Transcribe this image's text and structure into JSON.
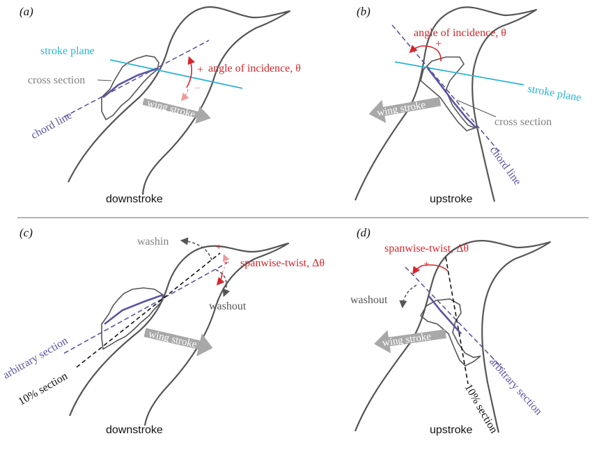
{
  "panels": {
    "a": {
      "letter": "(a)",
      "phase": "downstroke",
      "stroke_plane": "stroke plane",
      "cross_section": "cross section",
      "angle": "angle of incidence, θ",
      "plus": "+",
      "minus": "−",
      "chord_line": "chord line",
      "wing_stroke": "wing stroke"
    },
    "b": {
      "letter": "(b)",
      "phase": "upstroke",
      "angle": "angle of incidence, θ",
      "plus": "+",
      "stroke_plane": "stroke plane",
      "cross_section": "cross section",
      "chord_line": "chord line",
      "wing_stroke": "wing stroke"
    },
    "c": {
      "letter": "(c)",
      "phase": "downstroke",
      "washin": "washin",
      "plus": "+",
      "minus": "−",
      "twist": "spanwise-twist, Δθ",
      "washout": "washout",
      "arbitrary_section": "arbitrary section",
      "ten_pct_section": "10% section",
      "wing_stroke": "wing stroke"
    },
    "d": {
      "letter": "(d)",
      "phase": "upstroke",
      "twist": "spanwise-twist, Δθ",
      "plus": "+",
      "washout": "washout",
      "wing_stroke": "wing stroke",
      "ten_pct_section": "10% section",
      "arbitrary_section": "arbitrary section"
    }
  },
  "colors": {
    "outline": "#555555",
    "stroke_plane": "#29b4d4",
    "chord": "#5a54a3",
    "angle": "#d6262b",
    "angle_light": "#ee9a9a",
    "grey_text": "#808080",
    "arrow_fill": "#a8a8a8",
    "black": "#111111"
  }
}
